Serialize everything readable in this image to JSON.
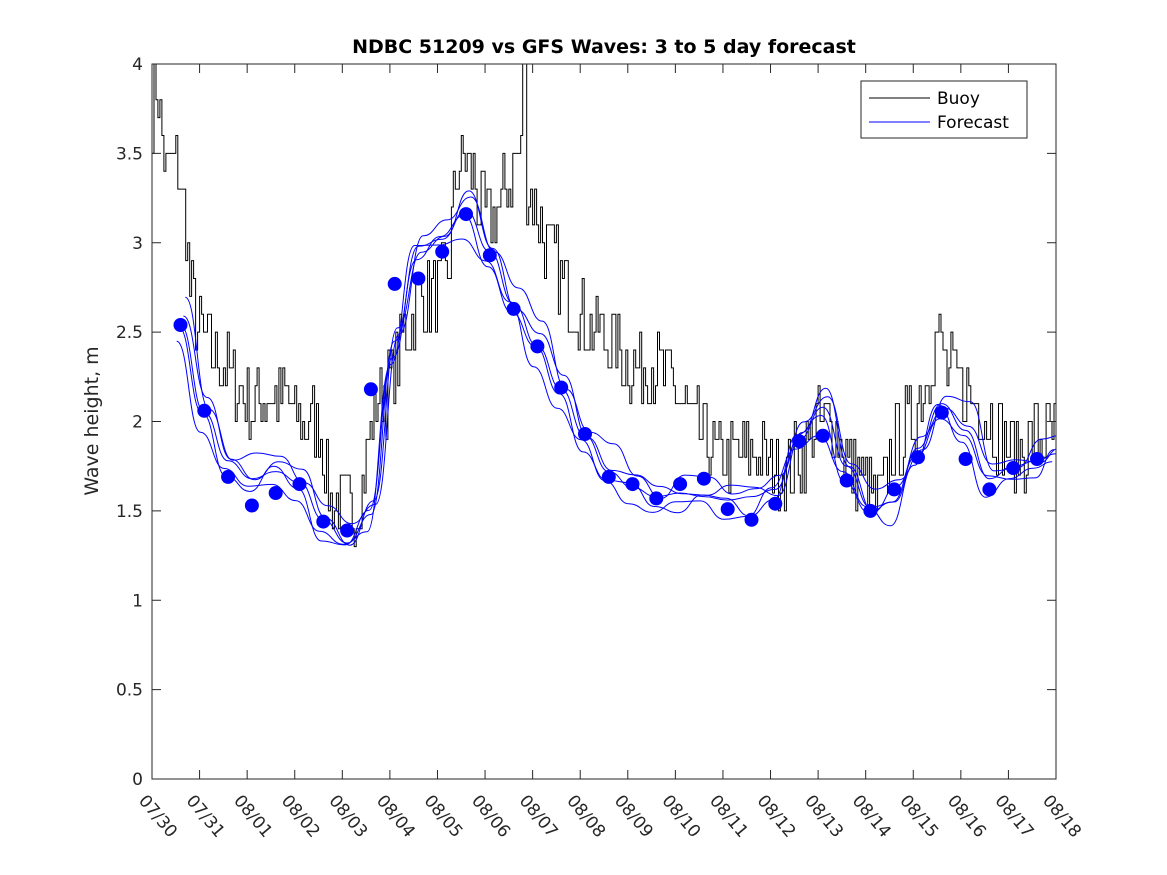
{
  "chart_data": {
    "type": "line",
    "title": "NDBC 51209 vs GFS Waves: 3 to 5 day forecast",
    "xlabel": "",
    "ylabel": "Wave height, m",
    "ylim": [
      0,
      4
    ],
    "yticks": [
      0,
      0.5,
      1,
      1.5,
      2,
      2.5,
      3,
      3.5,
      4
    ],
    "ytick_labels": [
      "0",
      "0.5",
      "1",
      "1.5",
      "2",
      "2.5",
      "3",
      "3.5",
      "4"
    ],
    "xlim_days": [
      0,
      19
    ],
    "xtick_labels": [
      "07/30",
      "07/31",
      "08/01",
      "08/02",
      "08/03",
      "08/04",
      "08/05",
      "08/06",
      "08/07",
      "08/08",
      "08/09",
      "08/10",
      "08/11",
      "08/12",
      "08/13",
      "08/14",
      "08/15",
      "08/16",
      "08/17",
      "08/18"
    ],
    "grid": false,
    "legend": {
      "location": "top-right",
      "entries": [
        "Buoy",
        "Forecast"
      ]
    },
    "colors": {
      "buoy": "#000000",
      "forecast": "#0000ff",
      "axes": "#262626"
    },
    "buoy_anchors": [
      [
        0,
        3.7
      ],
      [
        0.1,
        3.9
      ],
      [
        0.3,
        3.4
      ],
      [
        0.5,
        3.5
      ],
      [
        0.6,
        3.3
      ],
      [
        0.7,
        3.1
      ],
      [
        0.8,
        2.7
      ],
      [
        1.0,
        2.5
      ],
      [
        1.2,
        2.4
      ],
      [
        1.5,
        2.3
      ],
      [
        1.8,
        2.2
      ],
      [
        2.0,
        2.1
      ],
      [
        2.4,
        2.15
      ],
      [
        2.8,
        2.1
      ],
      [
        3.2,
        2.0
      ],
      [
        3.5,
        2.0
      ],
      [
        3.7,
        1.6
      ],
      [
        4.0,
        1.5
      ],
      [
        4.3,
        1.5
      ],
      [
        4.5,
        1.8
      ],
      [
        4.7,
        2.1
      ],
      [
        5.0,
        2.2
      ],
      [
        5.3,
        2.5
      ],
      [
        5.6,
        2.7
      ],
      [
        5.9,
        2.7
      ],
      [
        6.2,
        2.8
      ],
      [
        6.4,
        3.4
      ],
      [
        6.6,
        3.5
      ],
      [
        6.8,
        3.3
      ],
      [
        7.0,
        3.1
      ],
      [
        7.3,
        3.2
      ],
      [
        7.5,
        3.35
      ],
      [
        7.7,
        3.5
      ],
      [
        8.0,
        3.2
      ],
      [
        8.3,
        3.0
      ],
      [
        8.6,
        2.8
      ],
      [
        9.0,
        2.6
      ],
      [
        9.4,
        2.5
      ],
      [
        9.8,
        2.4
      ],
      [
        10.2,
        2.3
      ],
      [
        10.6,
        2.3
      ],
      [
        11.0,
        2.2
      ],
      [
        11.3,
        2.0
      ],
      [
        11.6,
        1.9
      ],
      [
        12.0,
        1.8
      ],
      [
        12.4,
        1.8
      ],
      [
        12.7,
        1.8
      ],
      [
        13.0,
        1.75
      ],
      [
        13.3,
        1.75
      ],
      [
        13.6,
        1.8
      ],
      [
        14.0,
        2.0
      ],
      [
        14.3,
        2.0
      ],
      [
        14.6,
        1.8
      ],
      [
        15.0,
        1.65
      ],
      [
        15.3,
        1.55
      ],
      [
        15.6,
        1.9
      ],
      [
        16.0,
        2.0
      ],
      [
        16.2,
        2.2
      ],
      [
        16.5,
        2.5
      ],
      [
        16.7,
        2.3
      ],
      [
        17.0,
        2.2
      ],
      [
        17.3,
        2.1
      ],
      [
        17.6,
        2.0
      ],
      [
        17.9,
        1.9
      ],
      [
        18.2,
        1.8
      ],
      [
        18.5,
        1.9
      ],
      [
        18.8,
        1.95
      ],
      [
        19.0,
        1.9
      ]
    ],
    "buoy_spike": [
      7.8,
      4.0
    ],
    "forecast_points_x": [
      0.6,
      1.1,
      1.6,
      2.1,
      2.6,
      3.1,
      3.6,
      4.1,
      4.6,
      5.1,
      5.6,
      6.1,
      6.6,
      7.1,
      7.6,
      8.1,
      8.6,
      9.1,
      9.6,
      10.1,
      10.6,
      11.1,
      11.6,
      12.1,
      12.6,
      13.1,
      13.6,
      14.1,
      14.6,
      15.1,
      15.6,
      16.1,
      16.6,
      17.1,
      17.6,
      18.1,
      18.6
    ],
    "forecast_points_y": [
      2.54,
      2.06,
      1.69,
      1.53,
      1.6,
      1.65,
      1.44,
      1.39,
      2.18,
      2.77,
      2.8,
      2.95,
      3.16,
      2.93,
      2.63,
      2.42,
      2.19,
      1.93,
      1.69,
      1.65,
      1.57,
      1.65,
      1.68,
      1.51,
      1.45,
      1.54,
      1.89,
      1.92,
      1.67,
      1.5,
      1.62,
      1.8,
      2.05,
      1.79,
      1.62,
      1.74,
      1.79
    ],
    "forecast_track_x": [
      0.6,
      1.1,
      1.6,
      2.1,
      2.6,
      3.1,
      3.6,
      4.1,
      4.6,
      5.1,
      5.6,
      6.1,
      6.6,
      7.1,
      7.6,
      8.1,
      8.6,
      9.1,
      9.6,
      10.1,
      10.6,
      11.1,
      11.6,
      12.1,
      12.6,
      13.1,
      13.6,
      14.1,
      14.6,
      15.1,
      15.6,
      16.1,
      16.6,
      17.1,
      17.6,
      18.1,
      18.6,
      19.0
    ],
    "forecast_track_y": [
      2.54,
      2.05,
      1.78,
      1.68,
      1.72,
      1.66,
      1.45,
      1.32,
      1.48,
      2.45,
      2.98,
      3.02,
      3.18,
      2.95,
      2.66,
      2.42,
      2.18,
      1.92,
      1.72,
      1.63,
      1.58,
      1.6,
      1.58,
      1.56,
      1.58,
      1.62,
      1.9,
      2.08,
      1.75,
      1.52,
      1.55,
      1.85,
      2.1,
      1.95,
      1.68,
      1.75,
      1.78,
      1.82
    ],
    "forecast_variations": [
      {
        "offset": 0.05,
        "shift": 0.15
      },
      {
        "offset": -0.06,
        "shift": -0.1
      },
      {
        "offset": 0.1,
        "shift": 0.25
      },
      {
        "offset": -0.1,
        "shift": -0.2
      }
    ]
  }
}
